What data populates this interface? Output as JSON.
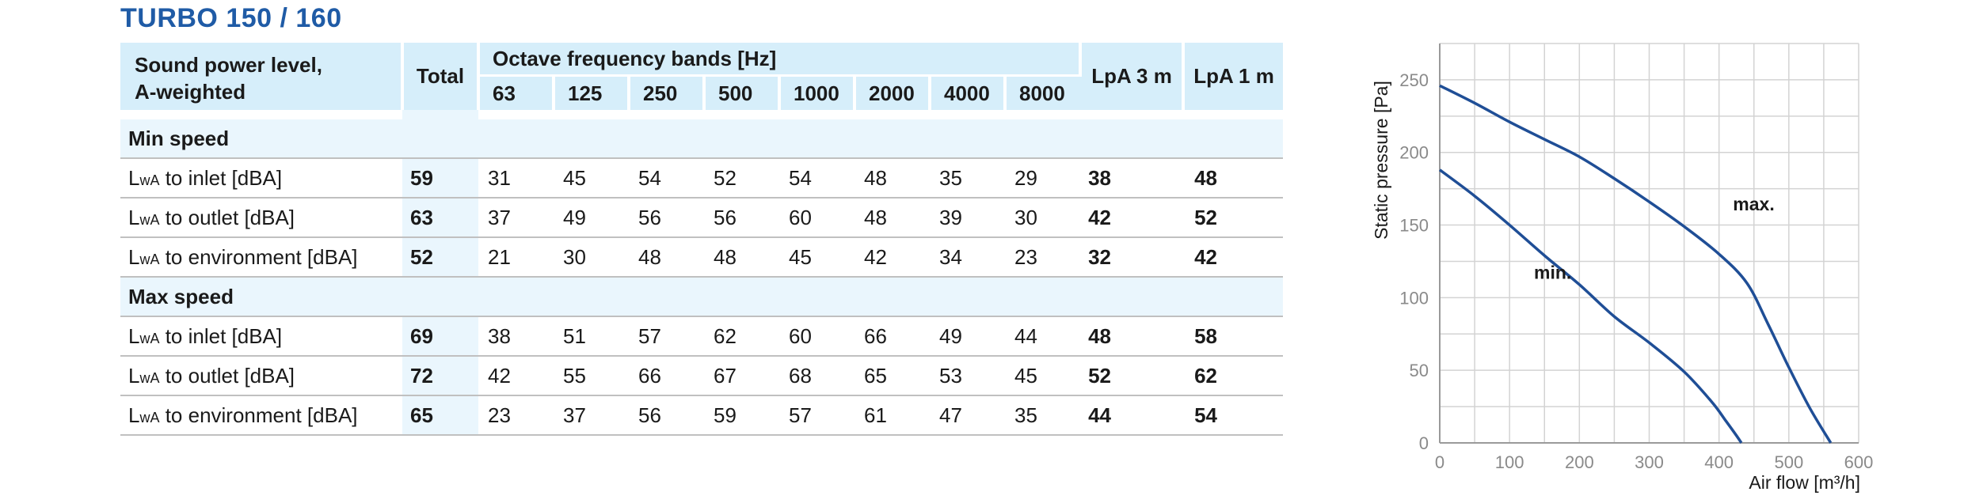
{
  "title": "TURBO 150 / 160",
  "table": {
    "header_label": [
      "Sound power level,",
      "A-weighted"
    ],
    "header_total": "Total",
    "header_octave": "Octave frequency bands [Hz]",
    "bands": [
      "63",
      "125",
      "250",
      "500",
      "1000",
      "2000",
      "4000",
      "8000"
    ],
    "header_lpa3": "LpA 3 m",
    "header_lpa1": "LpA 1 m",
    "sections": [
      {
        "name": "Min speed",
        "rows": [
          {
            "prefix": "L",
            "sub": "wA",
            "label": " to inlet [dBA]",
            "total": "59",
            "bands": [
              "31",
              "45",
              "54",
              "52",
              "54",
              "48",
              "35",
              "29"
            ],
            "lpa3": "38",
            "lpa1": "48"
          },
          {
            "prefix": "L",
            "sub": "wA",
            "label": " to outlet [dBA]",
            "total": "63",
            "bands": [
              "37",
              "49",
              "56",
              "56",
              "60",
              "48",
              "39",
              "30"
            ],
            "lpa3": "42",
            "lpa1": "52"
          },
          {
            "prefix": "L",
            "sub": "wA",
            "label": " to environment [dBA]",
            "total": "52",
            "bands": [
              "21",
              "30",
              "48",
              "48",
              "45",
              "42",
              "34",
              "23"
            ],
            "lpa3": "32",
            "lpa1": "42"
          }
        ]
      },
      {
        "name": "Max speed",
        "rows": [
          {
            "prefix": "L",
            "sub": "wA",
            "label": " to inlet [dBA]",
            "total": "69",
            "bands": [
              "38",
              "51",
              "57",
              "62",
              "60",
              "66",
              "49",
              "44"
            ],
            "lpa3": "48",
            "lpa1": "58"
          },
          {
            "prefix": "L",
            "sub": "wA",
            "label": " to outlet [dBA]",
            "total": "72",
            "bands": [
              "42",
              "55",
              "66",
              "67",
              "68",
              "65",
              "53",
              "45"
            ],
            "lpa3": "52",
            "lpa1": "62"
          },
          {
            "prefix": "L",
            "sub": "wA",
            "label": " to environment [dBA]",
            "total": "65",
            "bands": [
              "23",
              "37",
              "56",
              "59",
              "57",
              "61",
              "47",
              "35"
            ],
            "lpa3": "44",
            "lpa1": "54"
          }
        ]
      }
    ]
  },
  "chart_data": {
    "type": "line",
    "xlabel": "Air flow [m³/h]",
    "ylabel": "Static pressure [Pa]",
    "xlim": [
      0,
      600
    ],
    "ylim": [
      0,
      275
    ],
    "xticks": [
      0,
      100,
      200,
      300,
      400,
      500,
      600
    ],
    "yticks": [
      0,
      50,
      100,
      150,
      200,
      250
    ],
    "grid": true,
    "line_color": "#1f4e96",
    "series": [
      {
        "name": "max.",
        "x": [
          0,
          50,
          100,
          150,
          200,
          250,
          300,
          350,
          400,
          440,
          470,
          500,
          530,
          560
        ],
        "y": [
          246,
          234,
          221,
          209,
          197,
          182,
          166,
          149,
          130,
          110,
          82,
          52,
          24,
          0
        ]
      },
      {
        "name": "min.",
        "x": [
          0,
          50,
          100,
          150,
          200,
          250,
          300,
          350,
          390,
          410,
          425,
          432
        ],
        "y": [
          188,
          170,
          150,
          129,
          109,
          87,
          69,
          49,
          28,
          15,
          5,
          0
        ]
      }
    ],
    "annotations": [
      {
        "text": "max.",
        "x": 420,
        "y": 160
      },
      {
        "text": "min.",
        "x": 135,
        "y": 113
      }
    ]
  }
}
